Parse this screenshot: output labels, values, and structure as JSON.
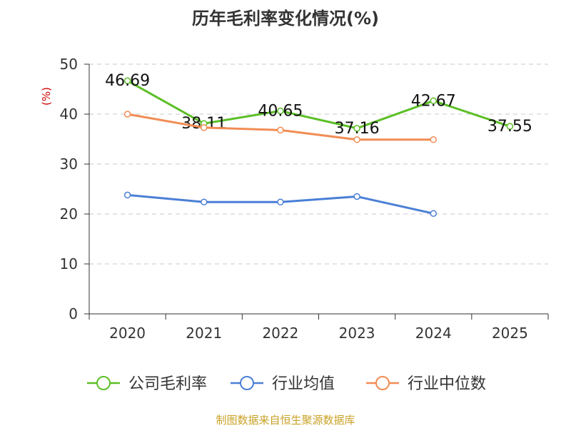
{
  "chart_data": {
    "type": "line",
    "title": "历年毛利率变化情况(%)",
    "ylabel": "(%)",
    "xlabel": "",
    "categories": [
      "2020",
      "2021",
      "2022",
      "2023",
      "2024",
      "2025"
    ],
    "ylim": [
      0,
      50
    ],
    "yticks": [
      "0",
      "10",
      "20",
      "30",
      "40",
      "50"
    ],
    "grid": true,
    "legend_position": "bottom",
    "series": [
      {
        "name": "公司毛利率",
        "color": "#5cbf27",
        "values": [
          46.69,
          38.11,
          40.65,
          37.16,
          42.67,
          37.55
        ],
        "labels": [
          "46.69",
          "38.11",
          "40.65",
          "37.16",
          "42.67",
          "37.55"
        ]
      },
      {
        "name": "行业均值",
        "color": "#4a7fd6",
        "values": [
          23.8,
          22.4,
          22.4,
          23.5,
          20.1,
          null
        ]
      },
      {
        "name": "行业中位数",
        "color": "#f28c54",
        "values": [
          40.0,
          37.3,
          36.8,
          34.9,
          34.9,
          null
        ]
      }
    ]
  },
  "footer": "制图数据来自恒生聚源数据库"
}
